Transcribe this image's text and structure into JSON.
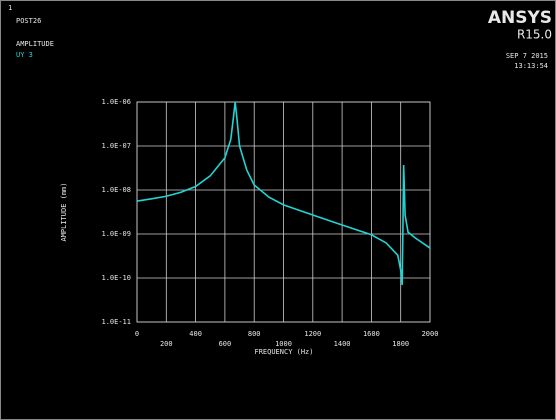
{
  "chart_data": {
    "type": "line",
    "window_number": "1",
    "header_lines": [
      "POST26",
      "AMPLITUDE",
      "UY 3"
    ],
    "brand": "ANSYS",
    "version": "R15.0",
    "date": "SEP  7 2015",
    "time": "13:13:54",
    "xlabel": "FREQUENCY (Hz)",
    "ylabel": "AMPLITUDE (mm)",
    "x": [
      0,
      100,
      200,
      300,
      400,
      500,
      600,
      640,
      660,
      670,
      680,
      700,
      750,
      800,
      900,
      1000,
      1200,
      1400,
      1600,
      1700,
      1780,
      1800,
      1810,
      1815,
      1820,
      1830,
      1850,
      1900,
      2000
    ],
    "series": [
      {
        "name": "UY 3",
        "color": "#22d4d4",
        "values": [
          5.6e-09,
          6.3e-09,
          7.2e-09,
          8.9e-09,
          1.2e-08,
          2.1e-08,
          5.4e-08,
          1.4e-07,
          5e-07,
          1e-06,
          5e-07,
          1e-07,
          2.8e-08,
          1.3e-08,
          6.9e-09,
          4.6e-09,
          2.7e-09,
          1.6e-09,
          9.6e-10,
          6.3e-10,
          3.3e-10,
          1.5e-10,
          6.9e-11,
          1.2e-09,
          3.7e-08,
          2.7e-09,
          1.1e-09,
          8.1e-10,
          4.8e-10
        ]
      }
    ],
    "xlim": [
      0,
      2000
    ],
    "xticks": [
      0,
      200,
      400,
      600,
      800,
      1000,
      1200,
      1400,
      1600,
      1800,
      2000
    ],
    "ylim": [
      1e-11,
      1e-06
    ],
    "yscale": "log",
    "yticks": [
      {
        "value": 1e-11,
        "label": "1.0E-11"
      },
      {
        "value": 1e-10,
        "label": "1.0E-10"
      },
      {
        "value": 1e-09,
        "label": "1.0E-09"
      },
      {
        "value": 1e-08,
        "label": "1.0E-08"
      },
      {
        "value": 1e-07,
        "label": "1.0E-07"
      },
      {
        "value": 1e-06,
        "label": "1.0E-06"
      }
    ],
    "grid": true
  }
}
